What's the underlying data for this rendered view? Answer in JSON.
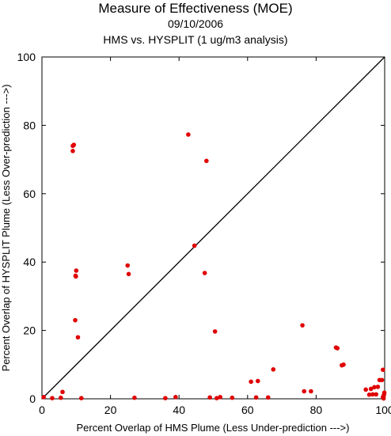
{
  "chart_data": {
    "type": "scatter",
    "title": "Measure of Effectiveness (MOE)",
    "date": "09/10/2006",
    "subtitle": "HMS vs. HYSPLIT  (1 ug/m3 analysis)",
    "xlabel": "Percent Overlap of HMS Plume (Less Under-prediction --->)",
    "ylabel": "Percent Overlap of HYSPLIT Plume (Less Over-prediction --->)",
    "xlim": [
      0,
      100
    ],
    "ylim": [
      0,
      100
    ],
    "xticks": [
      0,
      20,
      40,
      60,
      80,
      100
    ],
    "yticks": [
      0,
      20,
      40,
      60,
      80,
      100
    ],
    "grid": false,
    "reference_line": "y = x",
    "marker_color": "#e00000",
    "points": [
      [
        0.5,
        0.5
      ],
      [
        3,
        0.2
      ],
      [
        5.5,
        0.3
      ],
      [
        6,
        2
      ],
      [
        11.5,
        0.2
      ],
      [
        9,
        72.5
      ],
      [
        9,
        74
      ],
      [
        9.3,
        74.3
      ],
      [
        9.8,
        36
      ],
      [
        9.9,
        35.8
      ],
      [
        10,
        37.5
      ],
      [
        9.7,
        23
      ],
      [
        10.5,
        18
      ],
      [
        25,
        39
      ],
      [
        25.3,
        36.5
      ],
      [
        27,
        0.3
      ],
      [
        36,
        0.2
      ],
      [
        39,
        0.5
      ],
      [
        42.7,
        77.3
      ],
      [
        44.5,
        44.8
      ],
      [
        47.5,
        36.8
      ],
      [
        48,
        69.6
      ],
      [
        49,
        0.4
      ],
      [
        50.5,
        19.7
      ],
      [
        51,
        0.2
      ],
      [
        52,
        0.5
      ],
      [
        55.5,
        0.3
      ],
      [
        61,
        5
      ],
      [
        62.5,
        0.4
      ],
      [
        63,
        5.2
      ],
      [
        66,
        0.4
      ],
      [
        67.5,
        8.6
      ],
      [
        76,
        21.5
      ],
      [
        76.5,
        2.2
      ],
      [
        78.5,
        2.2
      ],
      [
        85.8,
        15
      ],
      [
        86.2,
        14.8
      ],
      [
        87.5,
        9.8
      ],
      [
        88,
        10
      ],
      [
        94.5,
        2.7
      ],
      [
        95.5,
        1.2
      ],
      [
        96,
        2.9
      ],
      [
        96.5,
        1.3
      ],
      [
        97,
        3.4
      ],
      [
        97.5,
        1.3
      ],
      [
        98,
        3.5
      ],
      [
        98.5,
        5.5
      ],
      [
        99.2,
        5.5
      ],
      [
        99.5,
        8.5
      ],
      [
        99.6,
        0.3
      ],
      [
        99.7,
        0.8
      ],
      [
        99.8,
        1.2
      ],
      [
        99.9,
        1.8
      ],
      [
        99.7,
        0.1
      ],
      [
        99.5,
        0.5
      ]
    ]
  }
}
